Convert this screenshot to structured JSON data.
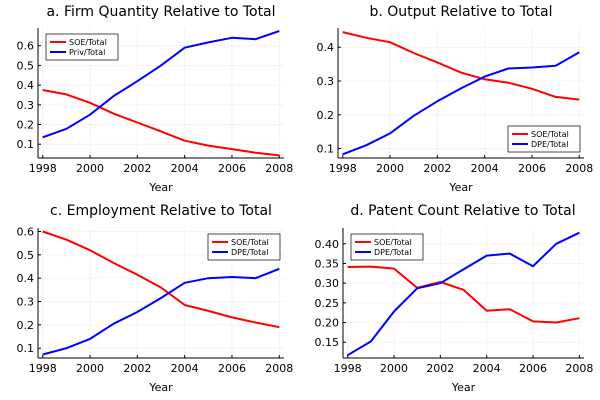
{
  "chart_data": [
    {
      "type": "line",
      "title": "a. Firm Quantity Relative to Total",
      "xlabel": "Year",
      "ylabel": "",
      "xlim": [
        1997.8,
        2008.2
      ],
      "ylim": [
        0.03,
        0.69
      ],
      "xticks": [
        1998,
        2000,
        2002,
        2004,
        2006,
        2008
      ],
      "xtick_labels": [
        "1998",
        "2000",
        "2002",
        "2004",
        "2006",
        "2008"
      ],
      "yticks": [
        0.1,
        0.2,
        0.3,
        0.4,
        0.5,
        0.6
      ],
      "ytick_labels": [
        "0.1",
        "0.2",
        "0.3",
        "0.4",
        "0.5",
        "0.6"
      ],
      "grid": true,
      "legend_position": "top-left",
      "x": [
        1998,
        1999,
        2000,
        2001,
        2002,
        2003,
        2004,
        2005,
        2006,
        2007,
        2008
      ],
      "series": [
        {
          "name": "SOE/Total",
          "color": "#ff0000",
          "values": [
            0.375,
            0.353,
            0.31,
            0.255,
            0.21,
            0.165,
            0.118,
            0.093,
            0.075,
            0.057,
            0.043
          ]
        },
        {
          "name": "Priv/Total",
          "color": "#0000ff",
          "values": [
            0.135,
            0.178,
            0.25,
            0.345,
            0.42,
            0.5,
            0.59,
            0.617,
            0.64,
            0.633,
            0.675
          ]
        }
      ]
    },
    {
      "type": "line",
      "title": "b. Output Relative to Total",
      "xlabel": "Year",
      "ylabel": "",
      "xlim": [
        1997.8,
        2008.2
      ],
      "ylim": [
        0.072,
        0.457
      ],
      "xticks": [
        1998,
        2000,
        2002,
        2004,
        2006,
        2008
      ],
      "xtick_labels": [
        "1998",
        "2000",
        "2002",
        "2004",
        "2006",
        "2008"
      ],
      "yticks": [
        0.1,
        0.2,
        0.3,
        0.4
      ],
      "ytick_labels": [
        "0.1",
        "0.2",
        "0.3",
        "0.4"
      ],
      "grid": true,
      "legend_position": "bottom-right",
      "x": [
        1998,
        1999,
        2000,
        2001,
        2002,
        2003,
        2004,
        2005,
        2006,
        2007,
        2008
      ],
      "series": [
        {
          "name": "SOE/Total",
          "color": "#ff0000",
          "values": [
            0.445,
            0.428,
            0.415,
            0.383,
            0.355,
            0.325,
            0.305,
            0.295,
            0.277,
            0.253,
            0.245
          ]
        },
        {
          "name": "DPE/Total",
          "color": "#0000ff",
          "values": [
            0.083,
            0.11,
            0.145,
            0.197,
            0.24,
            0.278,
            0.313,
            0.337,
            0.34,
            0.345,
            0.385
          ]
        }
      ]
    },
    {
      "type": "line",
      "title": "c. Employment Relative to Total",
      "xlabel": "Year",
      "ylabel": "",
      "xlim": [
        1997.8,
        2008.2
      ],
      "ylim": [
        0.058,
        0.615
      ],
      "xticks": [
        1998,
        2000,
        2002,
        2004,
        2006,
        2008
      ],
      "xtick_labels": [
        "1998",
        "2000",
        "2002",
        "2004",
        "2006",
        "2008"
      ],
      "yticks": [
        0.1,
        0.2,
        0.3,
        0.4,
        0.5,
        0.6
      ],
      "ytick_labels": [
        "0.1",
        "0.2",
        "0.3",
        "0.4",
        "0.5",
        "0.6"
      ],
      "grid": true,
      "legend_position": "top-right",
      "x": [
        1998,
        1999,
        2000,
        2001,
        2002,
        2003,
        2004,
        2005,
        2006,
        2007,
        2008
      ],
      "series": [
        {
          "name": "SOE/Total",
          "color": "#ff0000",
          "values": [
            0.6,
            0.565,
            0.52,
            0.465,
            0.415,
            0.36,
            0.285,
            0.26,
            0.232,
            0.21,
            0.19
          ]
        },
        {
          "name": "DPE/Total",
          "color": "#0000ff",
          "values": [
            0.073,
            0.1,
            0.14,
            0.205,
            0.255,
            0.315,
            0.38,
            0.4,
            0.405,
            0.4,
            0.44
          ]
        }
      ]
    },
    {
      "type": "line",
      "title": "d. Patent Count Relative to Total",
      "xlabel": "Year",
      "ylabel": "",
      "xlim": [
        1997.8,
        2008.2
      ],
      "ylim": [
        0.11,
        0.44
      ],
      "xticks": [
        1998,
        2000,
        2002,
        2004,
        2006,
        2008
      ],
      "xtick_labels": [
        "1998",
        "2000",
        "2002",
        "2004",
        "2006",
        "2008"
      ],
      "yticks": [
        0.15,
        0.2,
        0.25,
        0.3,
        0.35,
        0.4
      ],
      "ytick_labels": [
        "0.15",
        "0.20",
        "0.25",
        "0.30",
        "0.35",
        "0.40"
      ],
      "grid": true,
      "legend_position": "top-left",
      "x": [
        1998,
        1999,
        2000,
        2001,
        2002,
        2003,
        2004,
        2005,
        2006,
        2007,
        2008
      ],
      "series": [
        {
          "name": "SOE/Total",
          "color": "#ff0000",
          "values": [
            0.341,
            0.342,
            0.337,
            0.288,
            0.303,
            0.283,
            0.23,
            0.234,
            0.203,
            0.2,
            0.211
          ]
        },
        {
          "name": "DPE/Total",
          "color": "#0000ff",
          "values": [
            0.117,
            0.152,
            0.228,
            0.287,
            0.3,
            0.335,
            0.37,
            0.375,
            0.343,
            0.4,
            0.428
          ]
        }
      ]
    }
  ]
}
